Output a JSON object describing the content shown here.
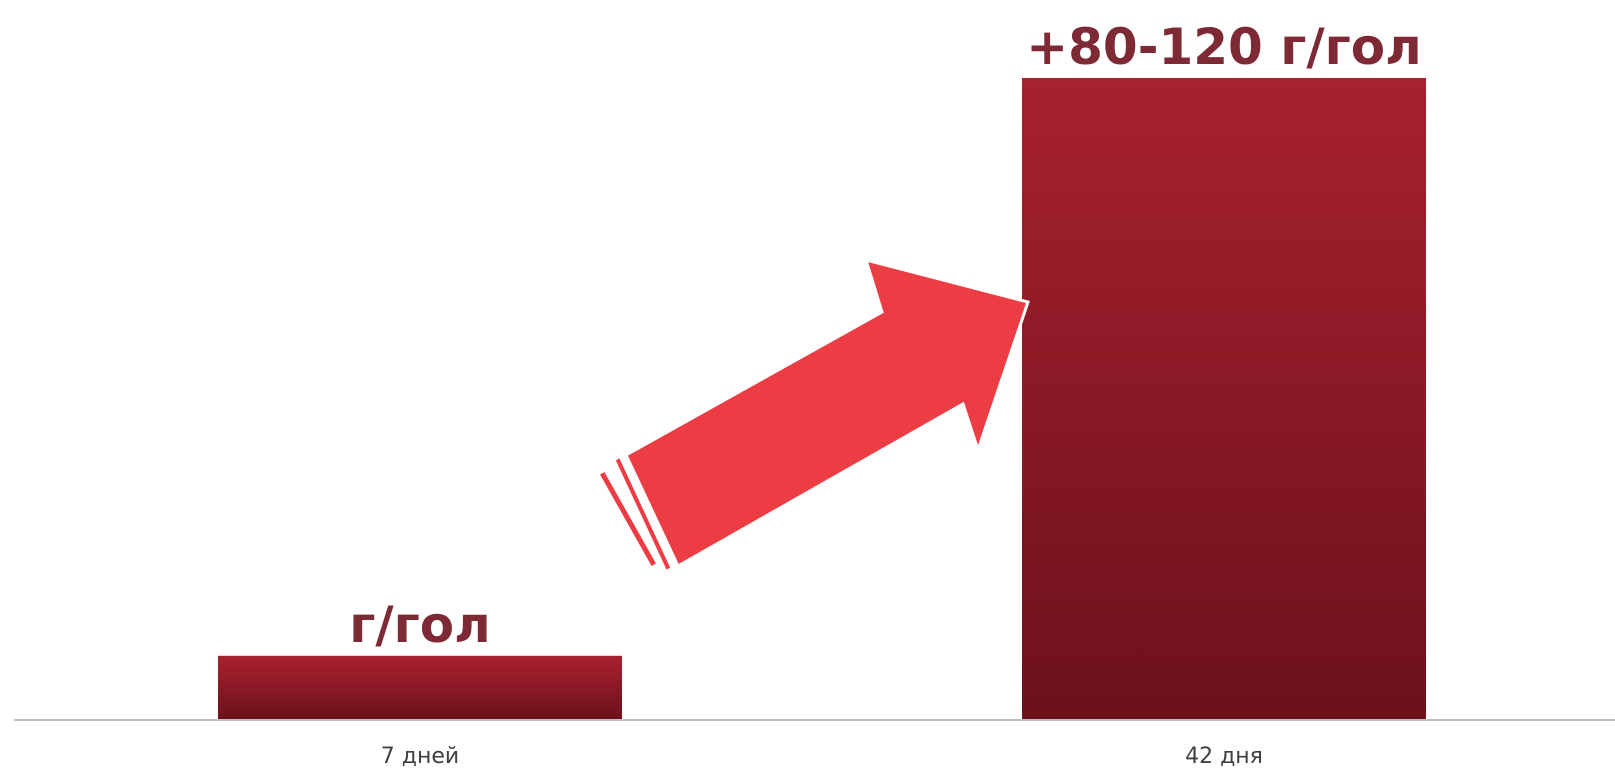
{
  "chart_data": {
    "type": "bar",
    "title": "",
    "xlabel": "",
    "ylabel": "",
    "categories": [
      "7 дней",
      "42 дня"
    ],
    "values": [
      10,
      100
    ],
    "ylim": [
      0,
      100
    ],
    "data_labels": [
      "г/гол",
      "+80-120 г/гол"
    ],
    "grid": false,
    "legend": "none",
    "annotations": [
      {
        "type": "arrow",
        "from_category": "7 дней",
        "to_category": "42 дня",
        "color": "#ec3d44"
      }
    ]
  },
  "colors": {
    "bar_top": "#a8212f",
    "bar_bottom": "#6b111b",
    "label": "#7e2a35",
    "arrow": "#ec3d44",
    "axis": "#bfbfbf",
    "tick_text": "#404040"
  }
}
